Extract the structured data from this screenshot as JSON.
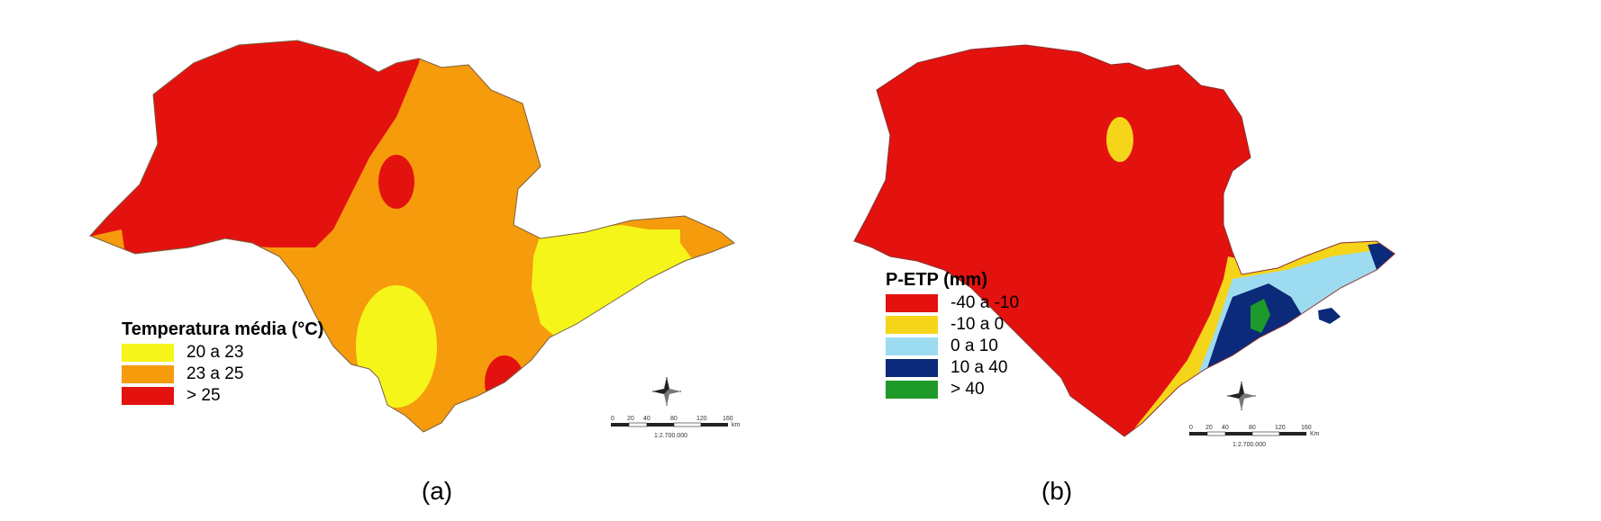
{
  "panel_a": {
    "caption": "(a)",
    "legend_title": "Temperatura média (°C)",
    "legend": [
      {
        "label": "20 a 23",
        "color": "#f5f51a"
      },
      {
        "label": "23 a 25",
        "color": "#f59b0c"
      },
      {
        "label": "> 25",
        "color": "#e3120f"
      }
    ],
    "scale": {
      "ticks": [
        "0",
        "20",
        "40",
        "80",
        "120",
        "160"
      ],
      "unit": "km",
      "ratio": "1:2.700.000"
    }
  },
  "panel_b": {
    "caption": "(b)",
    "legend_title": "P-ETP (mm)",
    "legend": [
      {
        "label": "-40 a -10",
        "color": "#e3120f"
      },
      {
        "label": "-10 a 0",
        "color": "#f5d51a"
      },
      {
        "label": "0 a 10",
        "color": "#9ddcf0"
      },
      {
        "label": "10 a 40",
        "color": "#0c2a7a"
      },
      {
        "label": "> 40",
        "color": "#1e9a2a"
      }
    ],
    "scale": {
      "ticks": [
        "0",
        "20",
        "40",
        "80",
        "120",
        "160"
      ],
      "unit": "Km",
      "ratio": "1:2.700.000"
    }
  },
  "colors": {
    "border": "#6b5a3a",
    "background": "#ffffff"
  }
}
